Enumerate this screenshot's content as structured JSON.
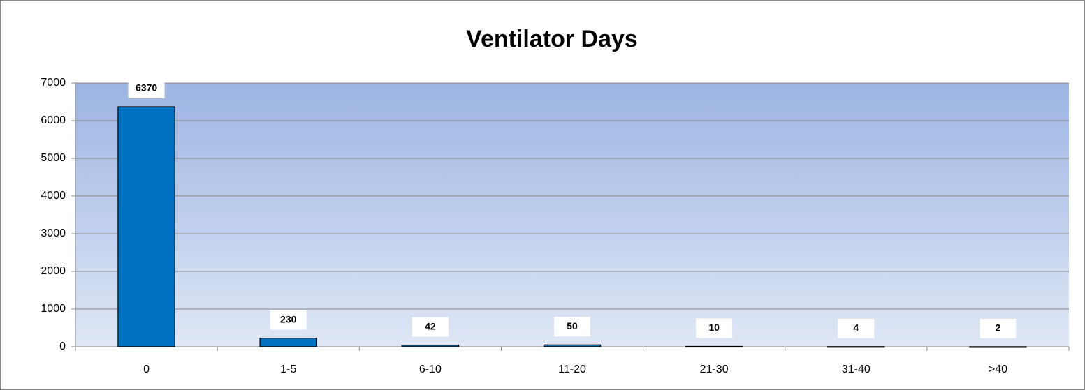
{
  "chart_data": {
    "type": "bar",
    "title": "Ventilator Days",
    "categories": [
      "0",
      "1-5",
      "6-10",
      "11-20",
      "21-30",
      "31-40",
      ">40"
    ],
    "values": [
      6370,
      230,
      42,
      50,
      10,
      4,
      2
    ],
    "color": "#0070c0",
    "ylim": [
      0,
      7000
    ],
    "yticks": [
      0,
      1000,
      2000,
      3000,
      4000,
      5000,
      6000,
      7000
    ],
    "grid": true
  }
}
